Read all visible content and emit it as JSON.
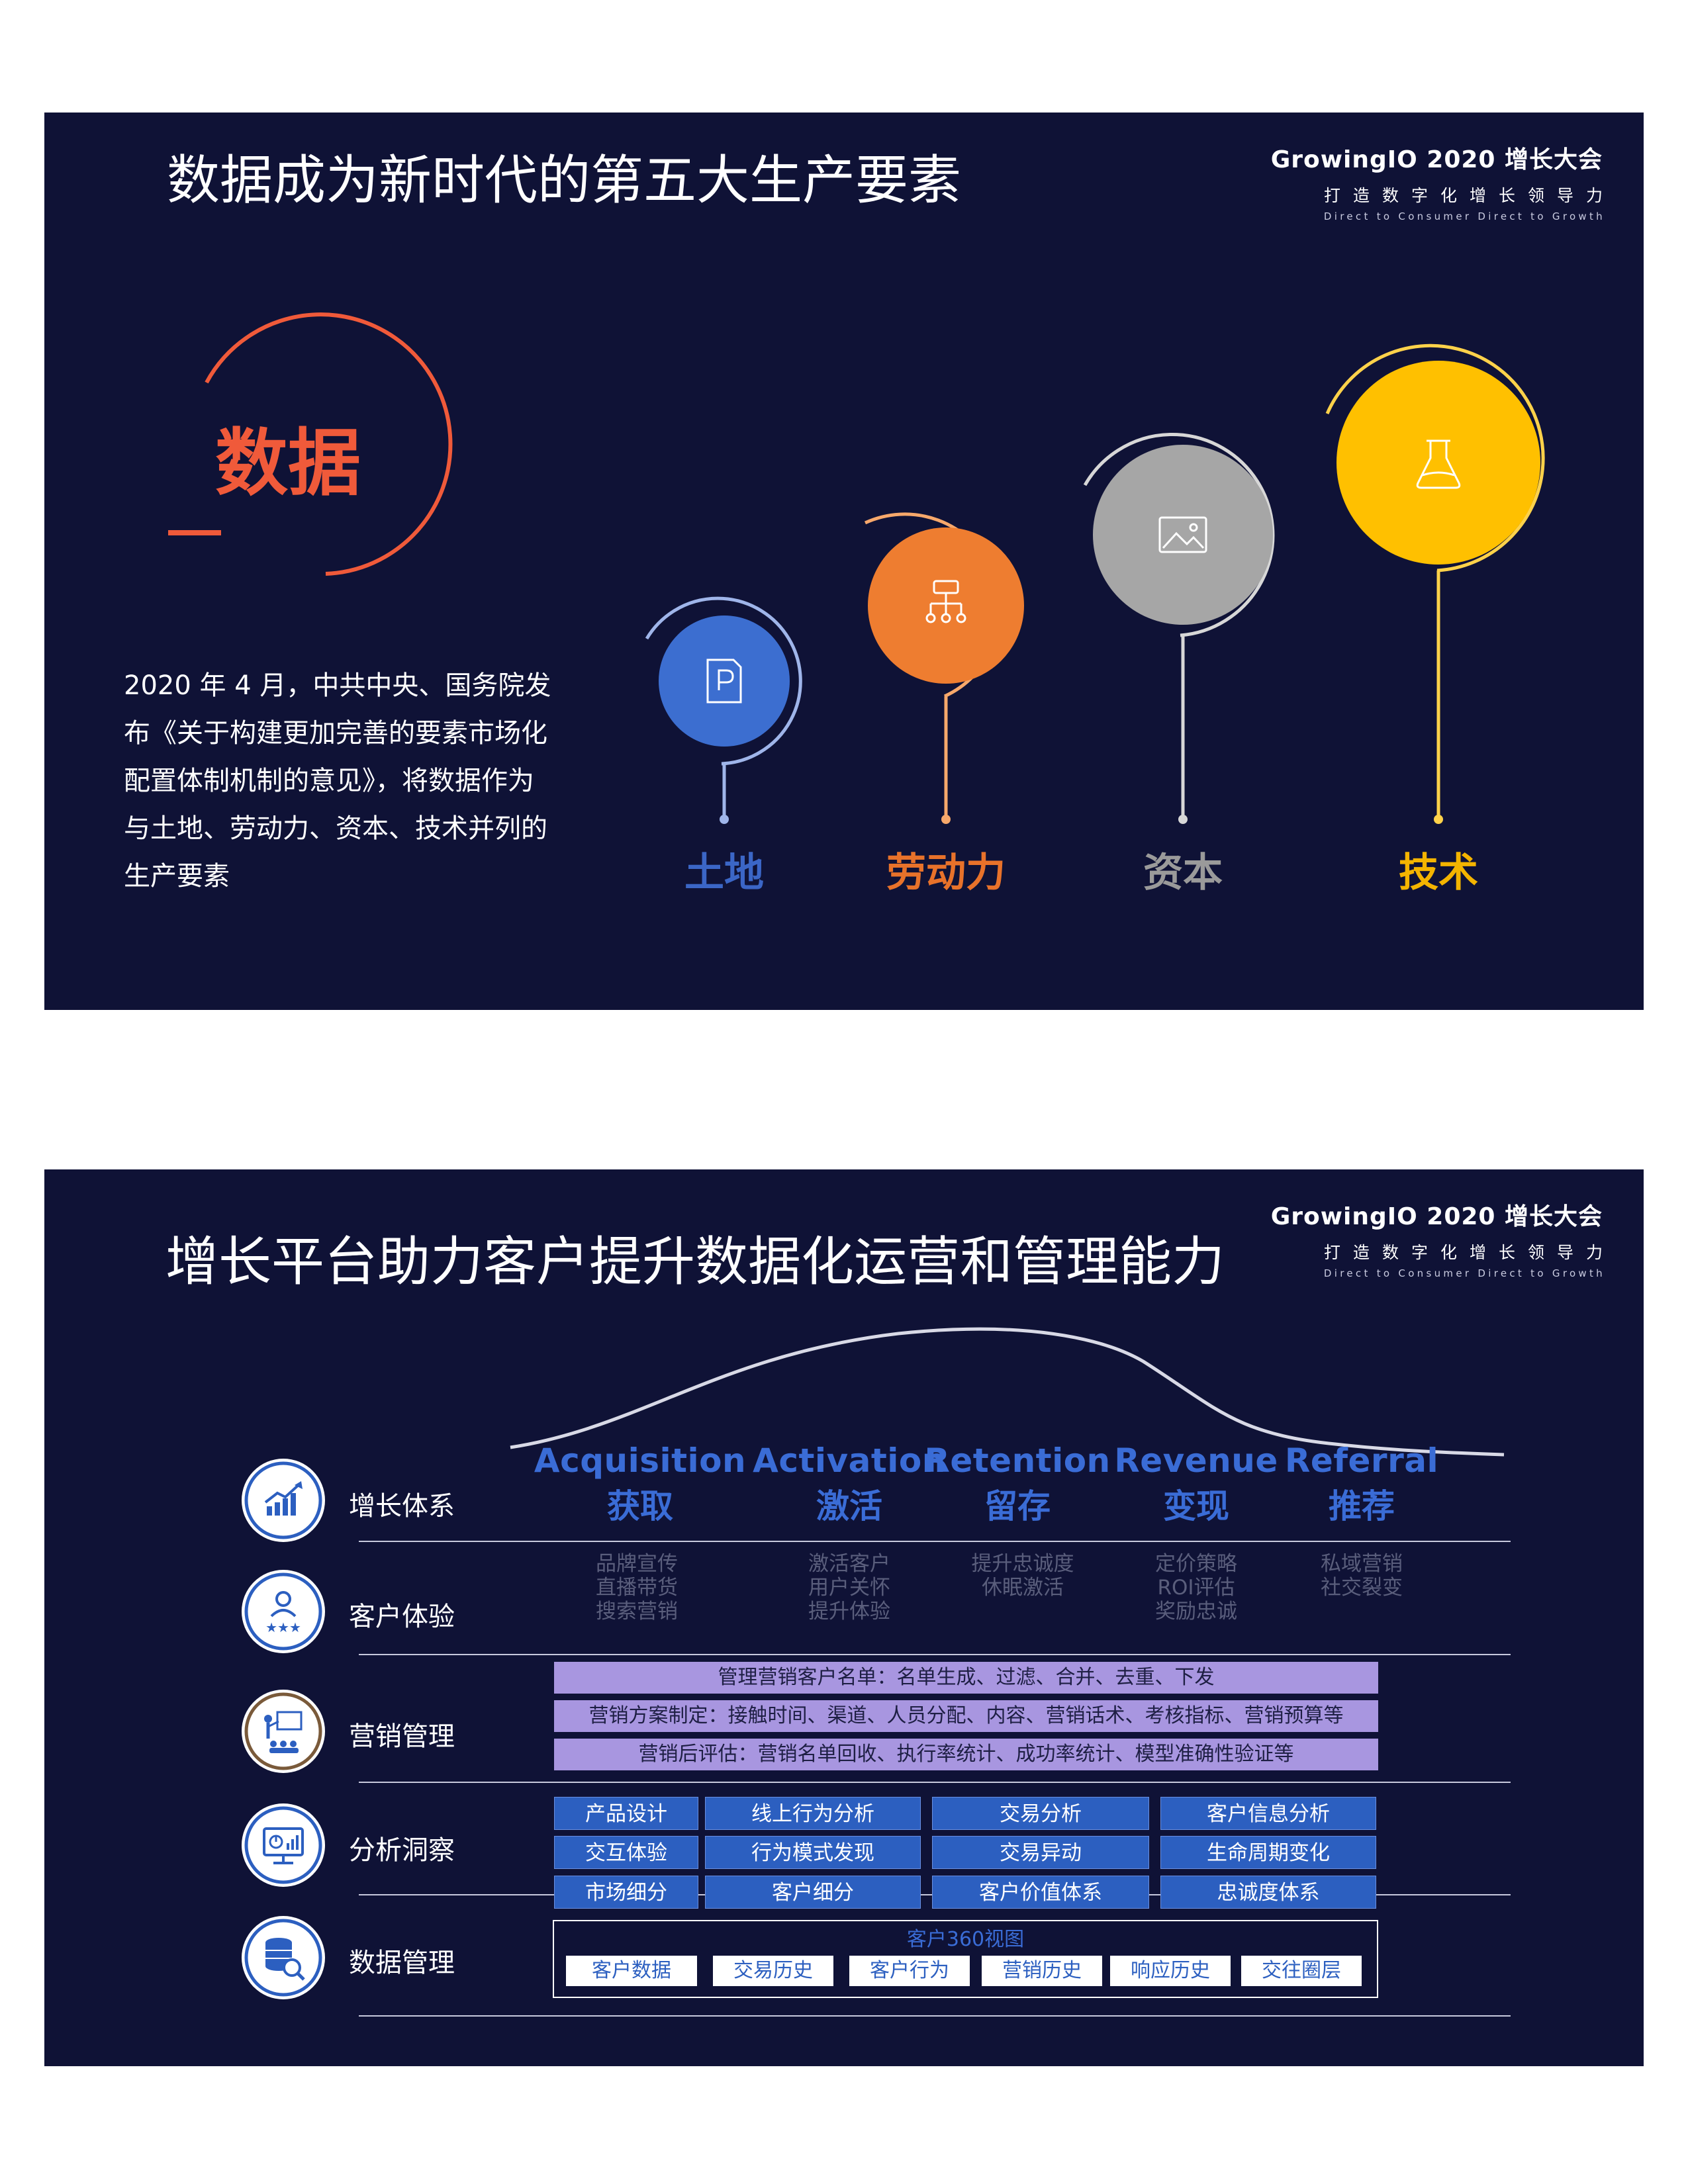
{
  "slide1": {
    "title": "数据成为新时代的第五大生产要素",
    "brand": {
      "name": "GrowingIO 2020 增长大会",
      "slogan_cn": "打造数字化增长领导力",
      "slogan_en": "Direct to Consumer Direct to Growth"
    },
    "hero_label": "数据",
    "paragraph_lines": [
      "2020 年 4 月，中共中央、国务院发",
      "布《关于构建更加完善的要素市场化",
      "配置体制机制的意见》，将数据作为",
      "与土地、劳动力、资本、技术并列的",
      "生产要素"
    ],
    "factors": [
      {
        "label": "土地",
        "icon": "document-icon",
        "color": "#3c6ed0",
        "label_color": "#3b66c6"
      },
      {
        "label": "劳动力",
        "icon": "org-chart-icon",
        "color": "#ee7d30",
        "label_color": "#e8722a"
      },
      {
        "label": "资本",
        "icon": "image-icon",
        "color": "#a6a6a6",
        "label_color": "#9a9a9a"
      },
      {
        "label": "技术",
        "icon": "flask-icon",
        "color": "#ffc000",
        "label_color": "#f4b400"
      }
    ]
  },
  "slide2": {
    "title": "增长平台助力客户提升数据化运营和管理能力",
    "brand": {
      "name": "GrowingIO 2020 增长大会",
      "slogan_cn": "打造数字化增长领导力",
      "slogan_en": "Direct to Consumer Direct to Growth"
    },
    "rows": [
      {
        "label": "增长体系",
        "icon": "growth-chart-icon"
      },
      {
        "label": "客户体验",
        "icon": "customer-rating-icon"
      },
      {
        "label": "营销管理",
        "icon": "presentation-icon"
      },
      {
        "label": "分析洞察",
        "icon": "analytics-dashboard-icon"
      },
      {
        "label": "数据管理",
        "icon": "database-search-icon"
      }
    ],
    "stages": [
      {
        "en": "Acquisition",
        "cn": "获取",
        "items": [
          "品牌宣传",
          "直播带货",
          "搜索营销"
        ]
      },
      {
        "en": "Activation",
        "cn": "激活",
        "items": [
          "激活客户",
          "用户关怀",
          "提升体验"
        ]
      },
      {
        "en": "Retention",
        "cn": "留存",
        "items": [
          "提升忠诚度",
          "休眠激活"
        ]
      },
      {
        "en": "Revenue",
        "cn": "变现",
        "items": [
          "定价策略",
          "ROI评估",
          "奖励忠诚"
        ]
      },
      {
        "en": "Referral",
        "cn": "推荐",
        "items": [
          "私域营销",
          "社交裂变"
        ]
      }
    ],
    "marketing_bars": [
      "管理营销客户名单：名单生成、过滤、合并、去重、下发",
      "营销方案制定：接触时间、渠道、人员分配、内容、营销话术、考核指标、营销预算等",
      "营销后评估：营销名单回收、执行率统计、成功率统计、模型准确性验证等"
    ],
    "analysis_columns": [
      [
        "产品设计",
        "交互体验",
        "市场细分"
      ],
      [
        "线上行为分析",
        "行为模式发现",
        "客户细分"
      ],
      [
        "交易分析",
        "交易异动",
        "客户价值体系"
      ],
      [
        "客户信息分析",
        "生命周期变化",
        "忠诚度体系"
      ]
    ],
    "data_mgmt": {
      "title": "客户360视图",
      "items": [
        "客户数据",
        "交易历史",
        "客户行为",
        "营销历史",
        "响应历史",
        "交往圈层"
      ]
    }
  }
}
